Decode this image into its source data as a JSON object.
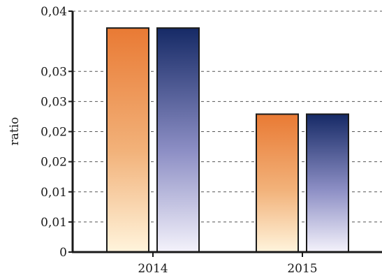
{
  "chart_data": {
    "type": "bar",
    "title": "",
    "xlabel": "",
    "ylabel": "ratio",
    "categories": [
      "2014",
      "2015"
    ],
    "series": [
      {
        "values": [
          0.0372,
          0.0229
        ]
      },
      {
        "values": [
          0.0372,
          0.0229
        ]
      }
    ],
    "ylim": [
      0,
      0.04
    ],
    "yticks": [
      0,
      0.005,
      0.01,
      0.015,
      0.02,
      0.025,
      0.03,
      0.04
    ],
    "ytick_labels": [
      "0",
      "0,01",
      "0,01",
      "0,02",
      "0,02",
      "0,03",
      "0,03",
      "0,04"
    ],
    "grid": true,
    "legend": "none",
    "colors": {
      "series1_top": "#e97a34",
      "series1_mid": "#f2b27a",
      "series1_bottom": "#fff4dc",
      "series2_top": "#162a66",
      "series2_mid": "#8d8fc5",
      "series2_bottom": "#f4f2fb",
      "axis": "#1a1a1a",
      "grid": "#555555"
    }
  }
}
